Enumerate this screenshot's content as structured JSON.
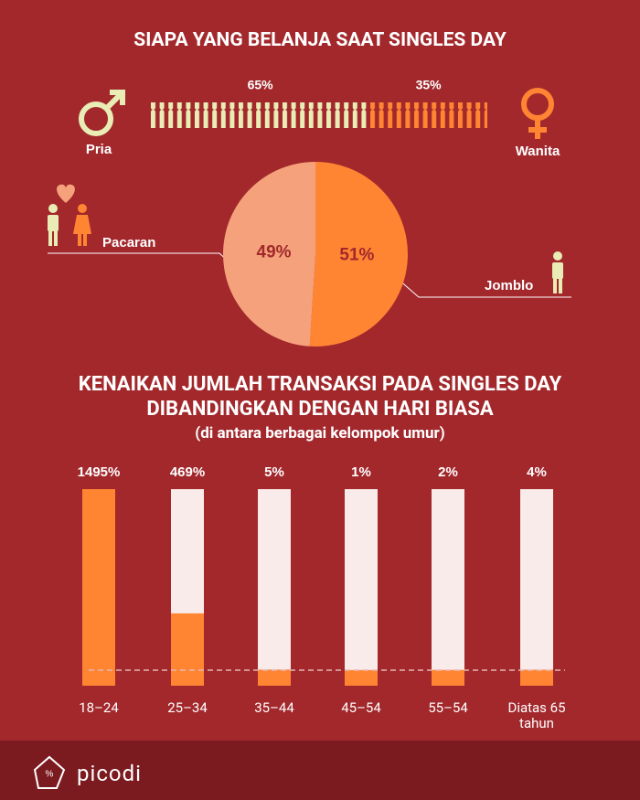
{
  "chart_data": [
    {
      "type": "split",
      "title": "SIAPA YANG BELANJA SAAT SINGLES DAY",
      "categories": [
        "Pria",
        "Wanita"
      ],
      "values": [
        65,
        35
      ],
      "value_labels": [
        "65%",
        "35%"
      ],
      "colors": [
        "#e9ecb5",
        "#ff8533"
      ]
    },
    {
      "type": "pie",
      "categories": [
        "Pacaran",
        "Jomblo"
      ],
      "values": [
        49,
        51
      ],
      "value_labels": [
        "49%",
        "51%"
      ],
      "colors": [
        "#f5a27c",
        "#ff8533"
      ]
    },
    {
      "type": "bar",
      "title": "KENAIKAN JUMLAH TRANSAKSI PADA SINGLES DAY DIBANDINGKAN DENGAN HARI BIASA",
      "subtitle": "(di antara berbagai kelompok umur)",
      "categories": [
        "18–24",
        "25–34",
        "35–44",
        "45–54",
        "55–54",
        "Diatas 65 tahun"
      ],
      "values": [
        1495,
        469,
        5,
        1,
        2,
        4
      ],
      "value_labels": [
        "1495%",
        "469%",
        "5%",
        "1%",
        "2%",
        "4%"
      ],
      "color": "#ff8533",
      "track_color": "#f9ebe9"
    }
  ],
  "footer": {
    "brand": "picodi"
  }
}
